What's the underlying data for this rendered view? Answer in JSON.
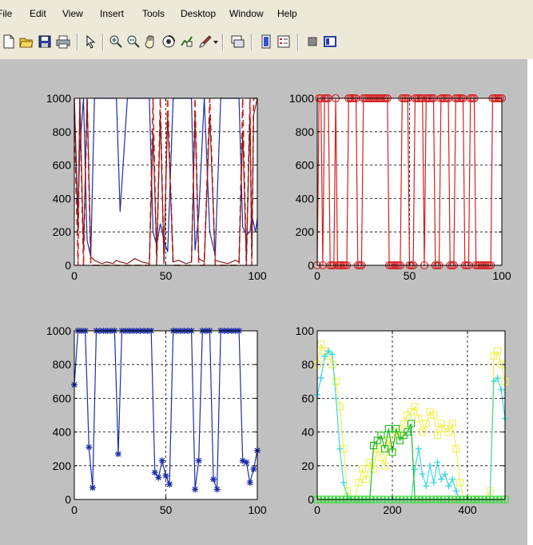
{
  "menu": {
    "items": [
      "File",
      "Edit",
      "View",
      "Insert",
      "Tools",
      "Desktop",
      "Window",
      "Help"
    ]
  },
  "toolbar": {
    "buttons": [
      "new-file-icon",
      "open-folder-icon",
      "save-icon",
      "print-icon",
      "pointer-arrow-icon",
      "zoom-in-icon",
      "zoom-out-icon",
      "pan-hand-icon",
      "rotate-3d-icon",
      "data-cursor-icon",
      "brush-icon",
      "dropdown-arrow-icon",
      "link-plot-icon",
      "colorbar-icon",
      "legend-icon",
      "hide-plot-tools-icon",
      "show-plot-tools-icon"
    ]
  },
  "colors": {
    "background": "#c0c0c0",
    "dark_red": "#8b1a1a",
    "red": "#d62020",
    "blue": "#1c2ea8",
    "yellow": "#f0f050",
    "cyan": "#40d8e0",
    "green": "#18b818",
    "light_green": "#40e040"
  },
  "chart_data": [
    {
      "type": "line",
      "xlim": [
        0,
        100
      ],
      "ylim": [
        0,
        1000
      ],
      "xticks": [
        "0",
        "50",
        "100"
      ],
      "yticks": [
        "0",
        "200",
        "400",
        "600",
        "800",
        "1000"
      ],
      "grid": true,
      "x": [
        0,
        2,
        3,
        5,
        7,
        9,
        11,
        13,
        15,
        18,
        21,
        23,
        25,
        29,
        33,
        37,
        41,
        43,
        45,
        47,
        49,
        51,
        54,
        57,
        61,
        64,
        66,
        68,
        71,
        74,
        77,
        80,
        84,
        88,
        90,
        92,
        94,
        96,
        97,
        98,
        99,
        100
      ],
      "series": [
        {
          "color": "#1c2ea8",
          "style": "solid",
          "values": [
            1000,
            300,
            700,
            1000,
            150,
            50,
            1000,
            1000,
            1000,
            1000,
            1000,
            1000,
            320,
            1000,
            1000,
            1000,
            1000,
            200,
            120,
            250,
            150,
            80,
            1000,
            1000,
            1000,
            1000,
            90,
            300,
            1000,
            200,
            60,
            1000,
            1000,
            1000,
            1000,
            230,
            180,
            200,
            300,
            250,
            200,
            280
          ]
        },
        {
          "color": "#c82a2a",
          "style": "dashed",
          "values": [
            900,
            0,
            1000,
            0,
            1000,
            0,
            0,
            0,
            0,
            0,
            0,
            0,
            0,
            0,
            0,
            0,
            0,
            1000,
            0,
            1000,
            0,
            1000,
            0,
            0,
            0,
            0,
            1000,
            0,
            0,
            1000,
            0,
            0,
            0,
            0,
            0,
            1000,
            0,
            1000,
            0,
            1000,
            1000,
            1000
          ]
        },
        {
          "color": "#8b1a1a",
          "style": "solid",
          "values": [
            1000,
            200,
            1000,
            100,
            1000,
            50,
            30,
            20,
            10,
            20,
            10,
            30,
            20,
            10,
            40,
            20,
            10,
            800,
            50,
            900,
            30,
            900,
            20,
            30,
            10,
            20,
            900,
            40,
            20,
            900,
            30,
            20,
            10,
            30,
            20,
            800,
            30,
            900,
            50,
            900,
            950,
            1000
          ]
        }
      ]
    },
    {
      "type": "line",
      "xlim": [
        0,
        100
      ],
      "ylim": [
        0,
        1000
      ],
      "xticks": [
        "0",
        "50",
        "100"
      ],
      "yticks": [
        "0",
        "200",
        "400",
        "600",
        "800",
        "1000"
      ],
      "grid": true,
      "marker": "circle",
      "color": "#d62020",
      "x": [
        0,
        1,
        2,
        3,
        4,
        5,
        6,
        7,
        8,
        9,
        10,
        11,
        12,
        13,
        14,
        15,
        16,
        17,
        18,
        19,
        20,
        21,
        22,
        23,
        24,
        25,
        26,
        27,
        28,
        29,
        30,
        31,
        32,
        33,
        34,
        35,
        36,
        37,
        38,
        39,
        40,
        41,
        42,
        43,
        44,
        45,
        46,
        47,
        48,
        49,
        50,
        51,
        52,
        53,
        54,
        55,
        56,
        57,
        58,
        59,
        60,
        61,
        62,
        63,
        64,
        65,
        66,
        67,
        68,
        69,
        70,
        71,
        72,
        73,
        74,
        75,
        76,
        77,
        78,
        79,
        80,
        81,
        82,
        83,
        84,
        85,
        86,
        87,
        88,
        89,
        90,
        91,
        92,
        93,
        94,
        95,
        96,
        97,
        98,
        99,
        100
      ],
      "values": [
        0,
        1000,
        1000,
        0,
        1000,
        1000,
        1000,
        0,
        0,
        0,
        1000,
        0,
        0,
        0,
        0,
        0,
        0,
        1000,
        1000,
        1000,
        1000,
        1000,
        0,
        0,
        0,
        1000,
        1000,
        1000,
        1000,
        1000,
        1000,
        1000,
        1000,
        1000,
        1000,
        1000,
        1000,
        1000,
        1000,
        0,
        0,
        0,
        0,
        0,
        0,
        0,
        1000,
        1000,
        1000,
        1000,
        0,
        0,
        0,
        1000,
        1000,
        1000,
        1000,
        1000,
        0,
        1000,
        1000,
        1000,
        1000,
        1000,
        0,
        0,
        0,
        1000,
        1000,
        1000,
        1000,
        1000,
        0,
        0,
        0,
        1000,
        1000,
        1000,
        1000,
        1000,
        0,
        0,
        0,
        1000,
        1000,
        1000,
        0,
        0,
        0,
        0,
        0,
        0,
        0,
        0,
        0,
        1000,
        1000,
        1000,
        1000,
        1000,
        1000
      ]
    },
    {
      "type": "line",
      "xlim": [
        0,
        100
      ],
      "ylim": [
        0,
        1000
      ],
      "xticks": [
        "0",
        "50",
        "100"
      ],
      "yticks": [
        "0",
        "200",
        "400",
        "600",
        "800",
        "1000"
      ],
      "grid": true,
      "marker": "star",
      "color": "#1c2ea8",
      "x": [
        0,
        2,
        4,
        6,
        8,
        10,
        12,
        14,
        16,
        18,
        20,
        22,
        24,
        26,
        28,
        30,
        32,
        34,
        36,
        38,
        40,
        42,
        44,
        46,
        48,
        50,
        52,
        54,
        56,
        58,
        60,
        62,
        64,
        66,
        68,
        70,
        72,
        74,
        76,
        78,
        80,
        82,
        84,
        86,
        88,
        90,
        92,
        94,
        96,
        98,
        100
      ],
      "values": [
        680,
        1000,
        1000,
        1000,
        310,
        70,
        1000,
        1000,
        1000,
        1000,
        1000,
        1000,
        270,
        1000,
        1000,
        1000,
        1000,
        1000,
        1000,
        1000,
        1000,
        1000,
        160,
        130,
        230,
        140,
        90,
        1000,
        1000,
        1000,
        1000,
        1000,
        1000,
        60,
        230,
        1000,
        1000,
        1000,
        120,
        60,
        1000,
        1000,
        1000,
        1000,
        1000,
        1000,
        230,
        220,
        100,
        180,
        290
      ]
    },
    {
      "type": "line",
      "xlim": [
        0,
        500
      ],
      "ylim": [
        0,
        100
      ],
      "xticks": [
        "0",
        "200",
        "400"
      ],
      "yticks": [
        "0",
        "20",
        "40",
        "60",
        "80",
        "100"
      ],
      "grid": true,
      "x": [
        0,
        10,
        20,
        30,
        40,
        50,
        60,
        70,
        80,
        90,
        100,
        110,
        120,
        130,
        140,
        150,
        160,
        170,
        180,
        190,
        200,
        210,
        220,
        230,
        240,
        250,
        260,
        270,
        280,
        290,
        300,
        310,
        320,
        330,
        340,
        350,
        360,
        370,
        380,
        390,
        400,
        410,
        420,
        430,
        440,
        450,
        460,
        470,
        480,
        490,
        500
      ],
      "series": [
        {
          "color": "#f0f050",
          "marker": "square",
          "values": [
            80,
            92,
            88,
            85,
            80,
            70,
            55,
            30,
            5,
            0,
            0,
            10,
            18,
            12,
            22,
            18,
            30,
            25,
            20,
            35,
            28,
            40,
            38,
            45,
            50,
            52,
            55,
            48,
            40,
            45,
            52,
            50,
            38,
            45,
            42,
            40,
            45,
            30,
            10,
            0,
            0,
            0,
            0,
            0,
            0,
            0,
            5,
            85,
            88,
            80,
            70
          ]
        },
        {
          "color": "#40d8e0",
          "marker": "plus",
          "values": [
            62,
            72,
            85,
            88,
            86,
            60,
            30,
            10,
            2,
            0,
            0,
            0,
            0,
            0,
            0,
            0,
            0,
            0,
            0,
            0,
            0,
            0,
            0,
            0,
            0,
            0,
            18,
            30,
            15,
            8,
            20,
            10,
            22,
            12,
            15,
            8,
            12,
            5,
            0,
            0,
            0,
            0,
            0,
            0,
            0,
            0,
            0,
            70,
            72,
            65,
            48
          ]
        },
        {
          "color": "#18b818",
          "marker": "square",
          "values": [
            0,
            0,
            0,
            0,
            0,
            0,
            0,
            0,
            0,
            0,
            0,
            0,
            0,
            0,
            0,
            32,
            35,
            38,
            30,
            42,
            28,
            42,
            35,
            38,
            40,
            45,
            0,
            0,
            0,
            0,
            0,
            0,
            0,
            0,
            0,
            0,
            0,
            0,
            0,
            0,
            0,
            0,
            0,
            0,
            0,
            0,
            0,
            0,
            0,
            0,
            0
          ]
        },
        {
          "color": "#40e040",
          "marker": "square",
          "values": [
            0,
            0,
            0,
            0,
            0,
            0,
            0,
            0,
            0,
            0,
            0,
            0,
            0,
            0,
            0,
            0,
            0,
            0,
            0,
            0,
            0,
            0,
            0,
            0,
            0,
            0,
            0,
            0,
            0,
            0,
            0,
            0,
            0,
            0,
            0,
            0,
            0,
            0,
            0,
            0,
            0,
            0,
            0,
            0,
            0,
            0,
            0,
            0,
            0,
            0,
            0
          ]
        }
      ]
    }
  ]
}
